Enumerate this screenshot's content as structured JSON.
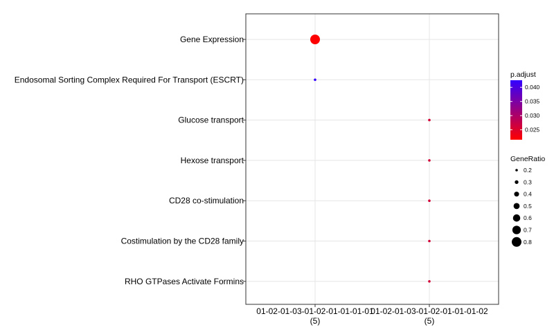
{
  "chart_data": {
    "type": "scatter",
    "categories_y": [
      "Gene Expression",
      "Endosomal Sorting Complex Required For Transport (ESCRT)",
      "Glucose transport",
      "Hexose transport",
      "CD28 co-stimulation",
      "Costimulation by the CD28 family",
      "RHO GTPases Activate Formins"
    ],
    "categories_x": [
      {
        "line1": "01-02-01-03-01-02-01-01-01-01",
        "line2": "(5)"
      },
      {
        "line1": "01-02-01-03-01-02-01-01-01-02",
        "line2": "(5)"
      }
    ],
    "points": [
      {
        "x": 0,
        "y": "Gene Expression",
        "gene_ratio": 0.8,
        "p_adjust": 0.0215
      },
      {
        "x": 0,
        "y": "Endosomal Sorting Complex Required For Transport (ESCRT)",
        "gene_ratio": 0.2,
        "p_adjust": 0.0425
      },
      {
        "x": 1,
        "y": "Glucose transport",
        "gene_ratio": 0.2,
        "p_adjust": 0.026
      },
      {
        "x": 1,
        "y": "Hexose transport",
        "gene_ratio": 0.2,
        "p_adjust": 0.026
      },
      {
        "x": 1,
        "y": "CD28 co-stimulation",
        "gene_ratio": 0.2,
        "p_adjust": 0.026
      },
      {
        "x": 1,
        "y": "Costimulation by the CD28 family",
        "gene_ratio": 0.2,
        "p_adjust": 0.026
      },
      {
        "x": 1,
        "y": "RHO GTPases Activate Formins",
        "gene_ratio": 0.2,
        "p_adjust": 0.026
      }
    ],
    "color_legend": {
      "title": "p.adjust",
      "range": [
        0.0215,
        0.0425
      ],
      "ticks": [
        0.025,
        0.03,
        0.035,
        0.04
      ],
      "tick_labels": [
        "0.025",
        "0.030",
        "0.035",
        "0.040"
      ],
      "low_color": "#ff0000",
      "high_color": "#3300ff"
    },
    "size_legend": {
      "title": "GeneRatio",
      "values": [
        0.2,
        0.3,
        0.4,
        0.5,
        0.6,
        0.7,
        0.8
      ],
      "labels": [
        "0.2",
        "0.3",
        "0.4",
        "0.5",
        "0.6",
        "0.7",
        "0.8"
      ]
    },
    "grid": true,
    "legend_position": "right"
  }
}
